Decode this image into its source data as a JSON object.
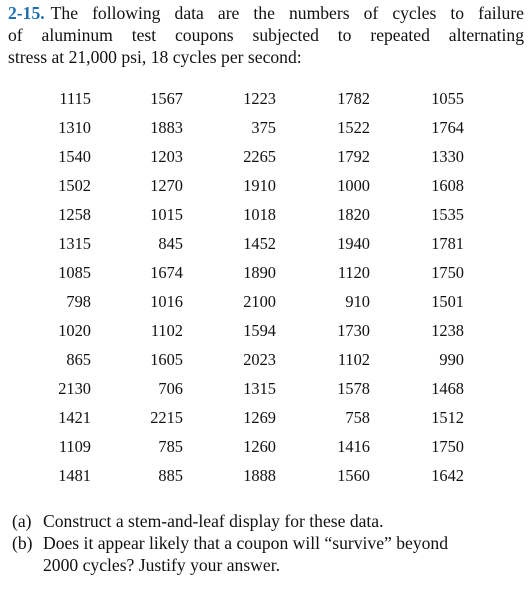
{
  "problem": {
    "number": "2-15.",
    "intro_line1": "The following data are the numbers of cycles to failure",
    "intro_line2": "of aluminum test coupons subjected to repeated alternating",
    "intro_line3": "stress at 21,000 psi, 18 cycles per second:"
  },
  "data_rows": [
    [
      "1115",
      "1567",
      "1223",
      "1782",
      "1055"
    ],
    [
      "1310",
      "1883",
      "375",
      "1522",
      "1764"
    ],
    [
      "1540",
      "1203",
      "2265",
      "1792",
      "1330"
    ],
    [
      "1502",
      "1270",
      "1910",
      "1000",
      "1608"
    ],
    [
      "1258",
      "1015",
      "1018",
      "1820",
      "1535"
    ],
    [
      "1315",
      "845",
      "1452",
      "1940",
      "1781"
    ],
    [
      "1085",
      "1674",
      "1890",
      "1120",
      "1750"
    ],
    [
      "798",
      "1016",
      "2100",
      "910",
      "1501"
    ],
    [
      "1020",
      "1102",
      "1594",
      "1730",
      "1238"
    ],
    [
      "865",
      "1605",
      "2023",
      "1102",
      "990"
    ],
    [
      "2130",
      "706",
      "1315",
      "1578",
      "1468"
    ],
    [
      "1421",
      "2215",
      "1269",
      "758",
      "1512"
    ],
    [
      "1109",
      "785",
      "1260",
      "1416",
      "1750"
    ],
    [
      "1481",
      "885",
      "1888",
      "1560",
      "1642"
    ]
  ],
  "questions": [
    {
      "label": "(a)",
      "line1": "Construct a stem-and-leaf display for these data.",
      "line2": ""
    },
    {
      "label": "(b)",
      "line1": "Does it appear likely that a coupon will “survive” beyond",
      "line2": "2000 cycles? Justify your answer."
    }
  ],
  "colors": {
    "problem_number": "#1d6fb0",
    "text": "#111111",
    "background": "#ffffff"
  }
}
